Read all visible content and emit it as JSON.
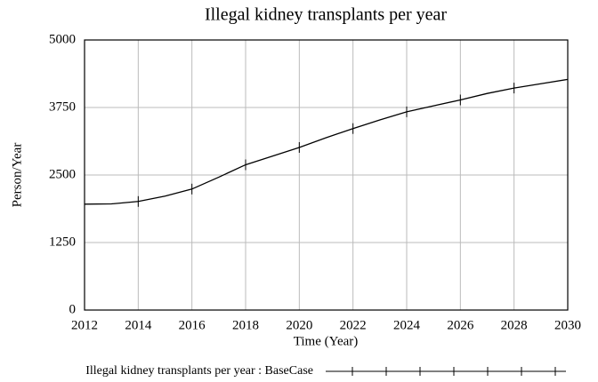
{
  "chart_data": {
    "type": "line",
    "title": "Illegal kidney transplants per year",
    "x_label": "Time (Year)",
    "y_label": "Person/Year",
    "x": [
      2012,
      2013,
      2014,
      2015,
      2016,
      2017,
      2018,
      2019,
      2020,
      2021,
      2022,
      2023,
      2024,
      2025,
      2026,
      2027,
      2028,
      2029,
      2030
    ],
    "series": [
      {
        "name": "Illegal kidney transplants per year : BaseCase",
        "color": "#000000",
        "values": [
          1960,
          1965,
          2010,
          2110,
          2240,
          2460,
          2690,
          2850,
          3010,
          3190,
          3360,
          3520,
          3670,
          3780,
          3890,
          4010,
          4110,
          4190,
          4270
        ]
      }
    ],
    "xlim": [
      2012,
      2030
    ],
    "xticks": [
      2012,
      2014,
      2016,
      2018,
      2020,
      2022,
      2024,
      2026,
      2028,
      2030
    ],
    "ylim": [
      0,
      5000
    ],
    "yticks": [
      0,
      1250,
      2500,
      3750,
      5000
    ],
    "grid": true
  }
}
